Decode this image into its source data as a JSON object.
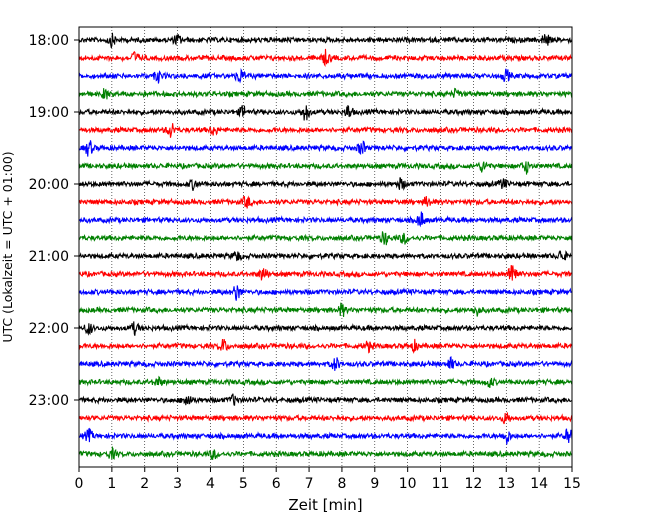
{
  "chart_data": {
    "type": "line",
    "subtype": "helicorder",
    "title": "",
    "xlabel": "Zeit  [min]",
    "ylabel": "UTC (Lokalzeit = UTC + 01:00)",
    "xlim": [
      0,
      15
    ],
    "x_ticks": [
      "0",
      "1",
      "2",
      "3",
      "4",
      "5",
      "6",
      "7",
      "8",
      "9",
      "10",
      "11",
      "12",
      "13",
      "14",
      "15"
    ],
    "y_tick_labels": [
      "18:00",
      "19:00",
      "20:00",
      "21:00",
      "22:00",
      "23:00"
    ],
    "rows_per_hour": 4,
    "minutes_per_row": 15,
    "x_grid": true,
    "x_grid_style": "dotted",
    "colors": [
      "#000000",
      "#ff0000",
      "#0000ff",
      "#008000"
    ],
    "rows": [
      {
        "start": "18:00",
        "color": "#000000",
        "events": [
          {
            "t": 1.0,
            "a": 0.6
          },
          {
            "t": 3.0,
            "a": 0.5
          },
          {
            "t": 14.2,
            "a": 0.7
          }
        ]
      },
      {
        "start": "18:15",
        "color": "#ff0000",
        "events": [
          {
            "t": 1.7,
            "a": 0.6
          },
          {
            "t": 7.5,
            "a": 0.7
          }
        ]
      },
      {
        "start": "18:30",
        "color": "#0000ff",
        "events": [
          {
            "t": 2.4,
            "a": 0.6
          },
          {
            "t": 4.9,
            "a": 0.7
          },
          {
            "t": 13.0,
            "a": 0.6
          }
        ]
      },
      {
        "start": "18:45",
        "color": "#008000",
        "events": [
          {
            "t": 0.8,
            "a": 0.5
          },
          {
            "t": 11.5,
            "a": 0.5
          }
        ]
      },
      {
        "start": "19:00",
        "color": "#000000",
        "events": [
          {
            "t": 5.0,
            "a": 0.6
          },
          {
            "t": 6.9,
            "a": 0.9
          },
          {
            "t": 8.2,
            "a": 0.7
          }
        ]
      },
      {
        "start": "19:15",
        "color": "#ff0000",
        "events": [
          {
            "t": 2.8,
            "a": 0.8
          },
          {
            "t": 4.1,
            "a": 0.5
          }
        ]
      },
      {
        "start": "19:30",
        "color": "#0000ff",
        "events": [
          {
            "t": 0.3,
            "a": 0.8
          },
          {
            "t": 8.6,
            "a": 0.7
          }
        ]
      },
      {
        "start": "19:45",
        "color": "#008000",
        "events": [
          {
            "t": 12.3,
            "a": 0.6
          },
          {
            "t": 13.6,
            "a": 0.7
          }
        ]
      },
      {
        "start": "20:00",
        "color": "#000000",
        "events": [
          {
            "t": 3.5,
            "a": 0.5
          },
          {
            "t": 9.8,
            "a": 0.6
          },
          {
            "t": 12.9,
            "a": 0.5
          }
        ]
      },
      {
        "start": "20:15",
        "color": "#ff0000",
        "events": [
          {
            "t": 5.1,
            "a": 0.6
          },
          {
            "t": 10.6,
            "a": 0.5
          }
        ]
      },
      {
        "start": "20:30",
        "color": "#0000ff",
        "events": [
          {
            "t": 10.4,
            "a": 0.8
          }
        ]
      },
      {
        "start": "20:45",
        "color": "#008000",
        "events": [
          {
            "t": 9.3,
            "a": 0.7
          },
          {
            "t": 9.9,
            "a": 0.6
          }
        ]
      },
      {
        "start": "21:00",
        "color": "#000000",
        "events": [
          {
            "t": 4.8,
            "a": 0.5
          },
          {
            "t": 14.7,
            "a": 0.6
          }
        ]
      },
      {
        "start": "21:15",
        "color": "#ff0000",
        "events": [
          {
            "t": 5.6,
            "a": 0.7
          },
          {
            "t": 13.2,
            "a": 1.6
          }
        ]
      },
      {
        "start": "21:30",
        "color": "#0000ff",
        "events": [
          {
            "t": 4.8,
            "a": 0.9
          }
        ]
      },
      {
        "start": "21:45",
        "color": "#008000",
        "events": [
          {
            "t": 8.0,
            "a": 0.6
          },
          {
            "t": 12.1,
            "a": 0.5
          }
        ]
      },
      {
        "start": "22:00",
        "color": "#000000",
        "events": [
          {
            "t": 0.3,
            "a": 0.6
          },
          {
            "t": 1.7,
            "a": 0.6
          }
        ]
      },
      {
        "start": "22:15",
        "color": "#ff0000",
        "events": [
          {
            "t": 4.4,
            "a": 0.7
          },
          {
            "t": 8.8,
            "a": 0.5
          },
          {
            "t": 10.2,
            "a": 0.5
          }
        ]
      },
      {
        "start": "22:30",
        "color": "#0000ff",
        "events": [
          {
            "t": 7.8,
            "a": 0.7
          },
          {
            "t": 11.3,
            "a": 0.6
          }
        ]
      },
      {
        "start": "22:45",
        "color": "#008000",
        "events": [
          {
            "t": 2.4,
            "a": 0.5
          },
          {
            "t": 12.5,
            "a": 0.5
          }
        ]
      },
      {
        "start": "23:00",
        "color": "#000000",
        "events": [
          {
            "t": 3.3,
            "a": 0.8
          },
          {
            "t": 4.7,
            "a": 0.5
          }
        ]
      },
      {
        "start": "23:15",
        "color": "#ff0000",
        "events": [
          {
            "t": 13.0,
            "a": 0.6
          }
        ]
      },
      {
        "start": "23:30",
        "color": "#0000ff",
        "events": [
          {
            "t": 0.3,
            "a": 0.6
          },
          {
            "t": 13.0,
            "a": 0.8
          },
          {
            "t": 14.9,
            "a": 0.9
          }
        ]
      },
      {
        "start": "23:45",
        "color": "#008000",
        "events": [
          {
            "t": 1.0,
            "a": 0.5
          },
          {
            "t": 4.1,
            "a": 0.5
          }
        ]
      }
    ]
  }
}
